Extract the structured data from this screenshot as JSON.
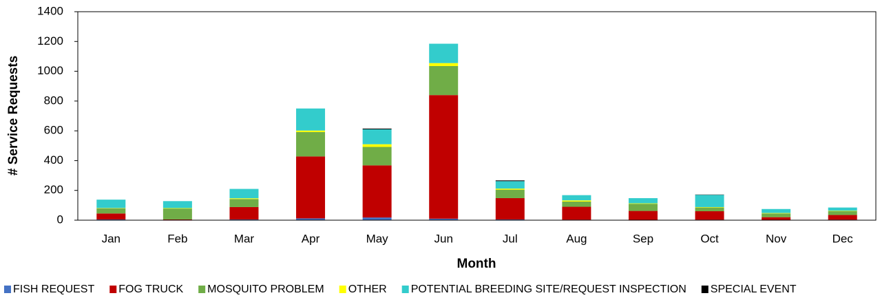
{
  "chart_data": {
    "type": "stacked_bar",
    "x_label": "Month",
    "y_label": "# Service Requests",
    "categories": [
      "Jan",
      "Feb",
      "Mar",
      "Apr",
      "May",
      "Jun",
      "Jul",
      "Aug",
      "Sep",
      "Oct",
      "Nov",
      "Dec"
    ],
    "series": [
      {
        "name": "FISH REQUEST",
        "color": "#4472c4",
        "values": [
          5,
          2,
          5,
          12,
          18,
          10,
          5,
          3,
          2,
          3,
          2,
          3
        ]
      },
      {
        "name": "FOG TRUCK",
        "color": "#c00000",
        "values": [
          40,
          3,
          83,
          416,
          350,
          830,
          143,
          87,
          60,
          57,
          18,
          32
        ]
      },
      {
        "name": "MOSQUITO PROBLEM",
        "color": "#70ad47",
        "values": [
          35,
          73,
          54,
          164,
          124,
          195,
          57,
          35,
          48,
          25,
          25,
          25
        ]
      },
      {
        "name": "OTHER",
        "color": "#ffff00",
        "values": [
          2,
          3,
          5,
          10,
          18,
          20,
          7,
          8,
          3,
          3,
          3,
          3
        ]
      },
      {
        "name": "POTENTIAL BREEDING SITE/REQUEST INSPECTION",
        "color": "#33cccc",
        "values": [
          56,
          47,
          63,
          148,
          100,
          130,
          50,
          35,
          35,
          82,
          27,
          22
        ]
      },
      {
        "name": "SPECIAL EVENT",
        "color": "#000000",
        "values": [
          0,
          0,
          0,
          0,
          5,
          0,
          5,
          0,
          0,
          2,
          0,
          0
        ]
      }
    ],
    "ylim": [
      0,
      1400
    ],
    "yticks": [
      0,
      200,
      400,
      600,
      800,
      1000,
      1200,
      1400
    ],
    "legend": "bottom"
  }
}
